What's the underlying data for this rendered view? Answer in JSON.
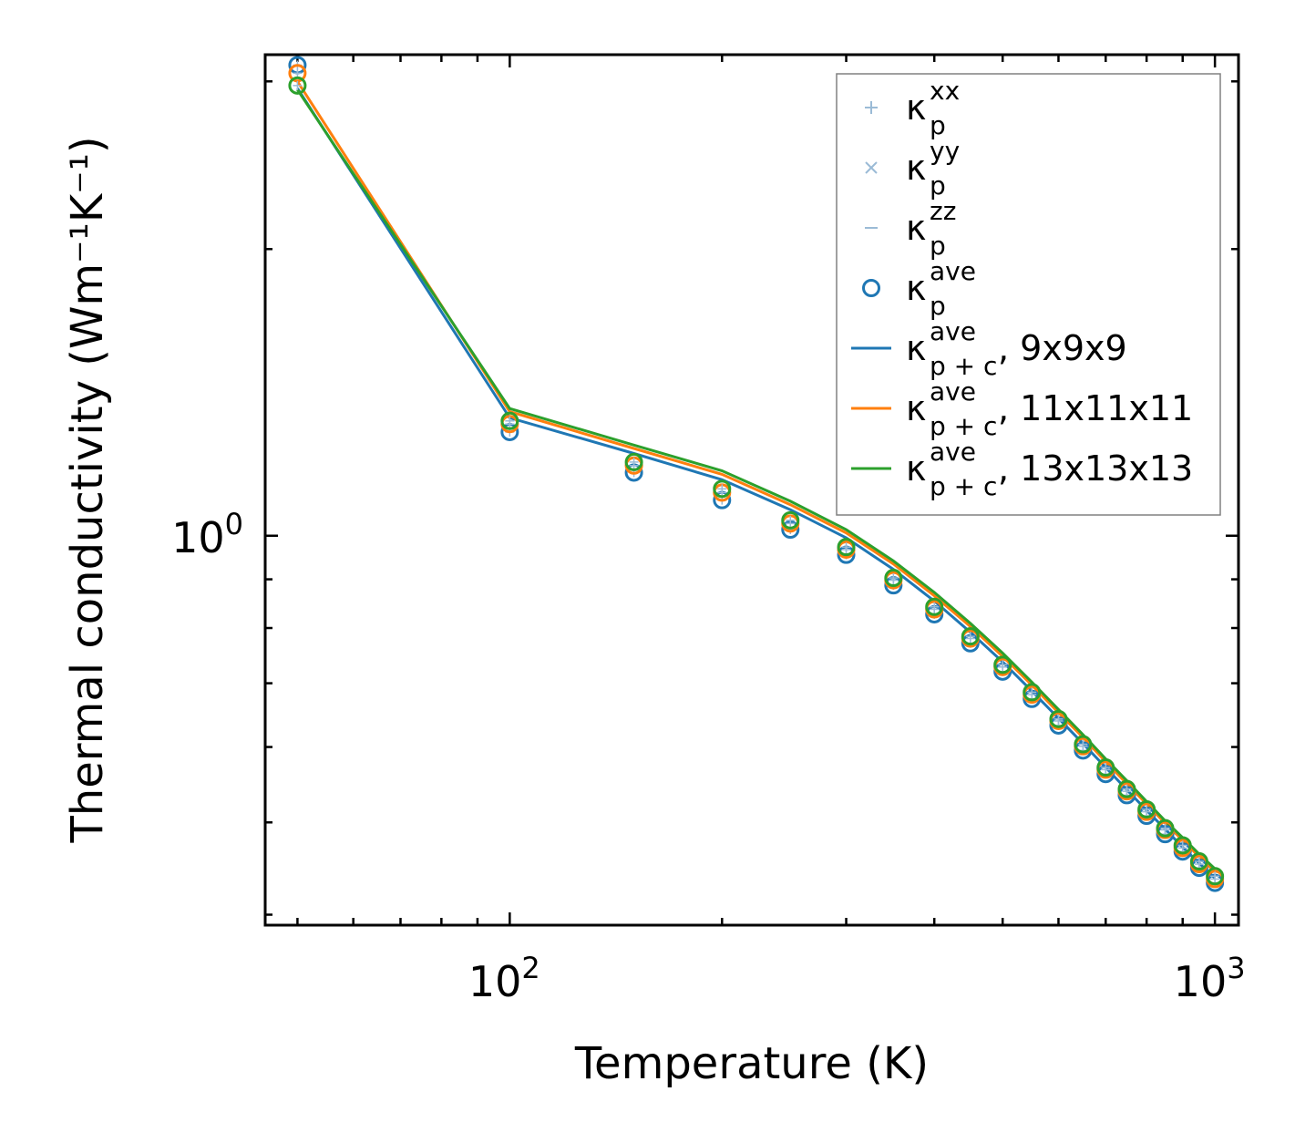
{
  "colors": {
    "series_9": "#1f77b4",
    "series_11": "#ff7f0e",
    "series_13": "#2ca02c",
    "component_markers": "#9bbbd6",
    "legend_border": "#808080",
    "axes": "#000000"
  },
  "chart_data": {
    "type": "line",
    "xscale": "log",
    "yscale": "log",
    "xlim": [
      45,
      1080
    ],
    "ylim": [
      0.39,
      3.2
    ],
    "xlabel": "Temperature (K)",
    "ylabel": "Thermal conductivity (Wm⁻¹K⁻¹)",
    "x_ticks": [
      {
        "base": "10",
        "exp": "2",
        "value": 100
      },
      {
        "base": "10",
        "exp": "3",
        "value": 1000
      }
    ],
    "y_ticks": [
      {
        "base": "10",
        "exp": "0",
        "value": 1
      }
    ],
    "x": [
      50,
      100,
      150,
      200,
      250,
      300,
      350,
      400,
      450,
      500,
      550,
      600,
      650,
      700,
      750,
      800,
      850,
      900,
      950,
      1000
    ],
    "series": [
      {
        "name": "9x9x9",
        "line_label": "κ",
        "sup": "ave",
        "sub": "p + c",
        "suffix": ", 9x9x9",
        "color_key": "series_9",
        "kappa_pc": [
          2.95,
          1.33,
          1.22,
          1.145,
          1.065,
          0.995,
          0.922,
          0.854,
          0.792,
          0.737,
          0.687,
          0.643,
          0.605,
          0.571,
          0.541,
          0.515,
          0.492,
          0.471,
          0.453,
          0.437
        ],
        "kappa_p": [
          3.12,
          1.285,
          1.165,
          1.09,
          1.015,
          0.955,
          0.887,
          0.827,
          0.771,
          0.72,
          0.674,
          0.632,
          0.595,
          0.562,
          0.534,
          0.508,
          0.486,
          0.466,
          0.448,
          0.432
        ]
      },
      {
        "name": "11x11x11",
        "line_label": "κ",
        "sup": "ave",
        "sub": "p + c",
        "suffix": ", 11x11x11",
        "color_key": "series_11",
        "kappa_pc": [
          3.0,
          1.35,
          1.235,
          1.16,
          1.078,
          1.007,
          0.934,
          0.865,
          0.803,
          0.747,
          0.697,
          0.652,
          0.614,
          0.579,
          0.549,
          0.523,
          0.499,
          0.479,
          0.46,
          0.444
        ],
        "kappa_p": [
          3.06,
          1.31,
          1.185,
          1.11,
          1.03,
          0.967,
          0.898,
          0.837,
          0.78,
          0.728,
          0.681,
          0.639,
          0.601,
          0.568,
          0.539,
          0.513,
          0.491,
          0.47,
          0.452,
          0.436
        ]
      },
      {
        "name": "13x13x13",
        "line_label": "κ",
        "sup": "ave",
        "sub": "p + c",
        "suffix": ", 13x13x13",
        "color_key": "series_13",
        "kappa_pc": [
          2.94,
          1.36,
          1.245,
          1.17,
          1.087,
          1.015,
          0.941,
          0.872,
          0.809,
          0.753,
          0.702,
          0.657,
          0.618,
          0.583,
          0.553,
          0.526,
          0.502,
          0.482,
          0.463,
          0.447
        ],
        "kappa_p": [
          2.97,
          1.32,
          1.195,
          1.12,
          1.038,
          0.973,
          0.903,
          0.842,
          0.784,
          0.732,
          0.685,
          0.642,
          0.604,
          0.571,
          0.542,
          0.516,
          0.493,
          0.473,
          0.455,
          0.439
        ]
      }
    ],
    "legend": {
      "placement": "top-right",
      "entries": [
        {
          "marker": "plus",
          "base": "κ",
          "sup": "xx",
          "sub": "p",
          "suffix": ""
        },
        {
          "marker": "cross",
          "base": "κ",
          "sup": "yy",
          "sub": "p",
          "suffix": ""
        },
        {
          "marker": "hline",
          "base": "κ",
          "sup": "zz",
          "sub": "p",
          "suffix": ""
        },
        {
          "marker": "circle",
          "base": "κ",
          "sup": "ave",
          "sub": "p",
          "suffix": ""
        },
        {
          "marker": "line",
          "color_key": "series_9",
          "base": "κ",
          "sup": "ave",
          "sub": "p + c",
          "suffix": ", 9x9x9"
        },
        {
          "marker": "line",
          "color_key": "series_11",
          "base": "κ",
          "sup": "ave",
          "sub": "p + c",
          "suffix": ", 11x11x11"
        },
        {
          "marker": "line",
          "color_key": "series_13",
          "base": "κ",
          "sup": "ave",
          "sub": "p + c",
          "suffix": ", 13x13x13"
        }
      ]
    }
  }
}
